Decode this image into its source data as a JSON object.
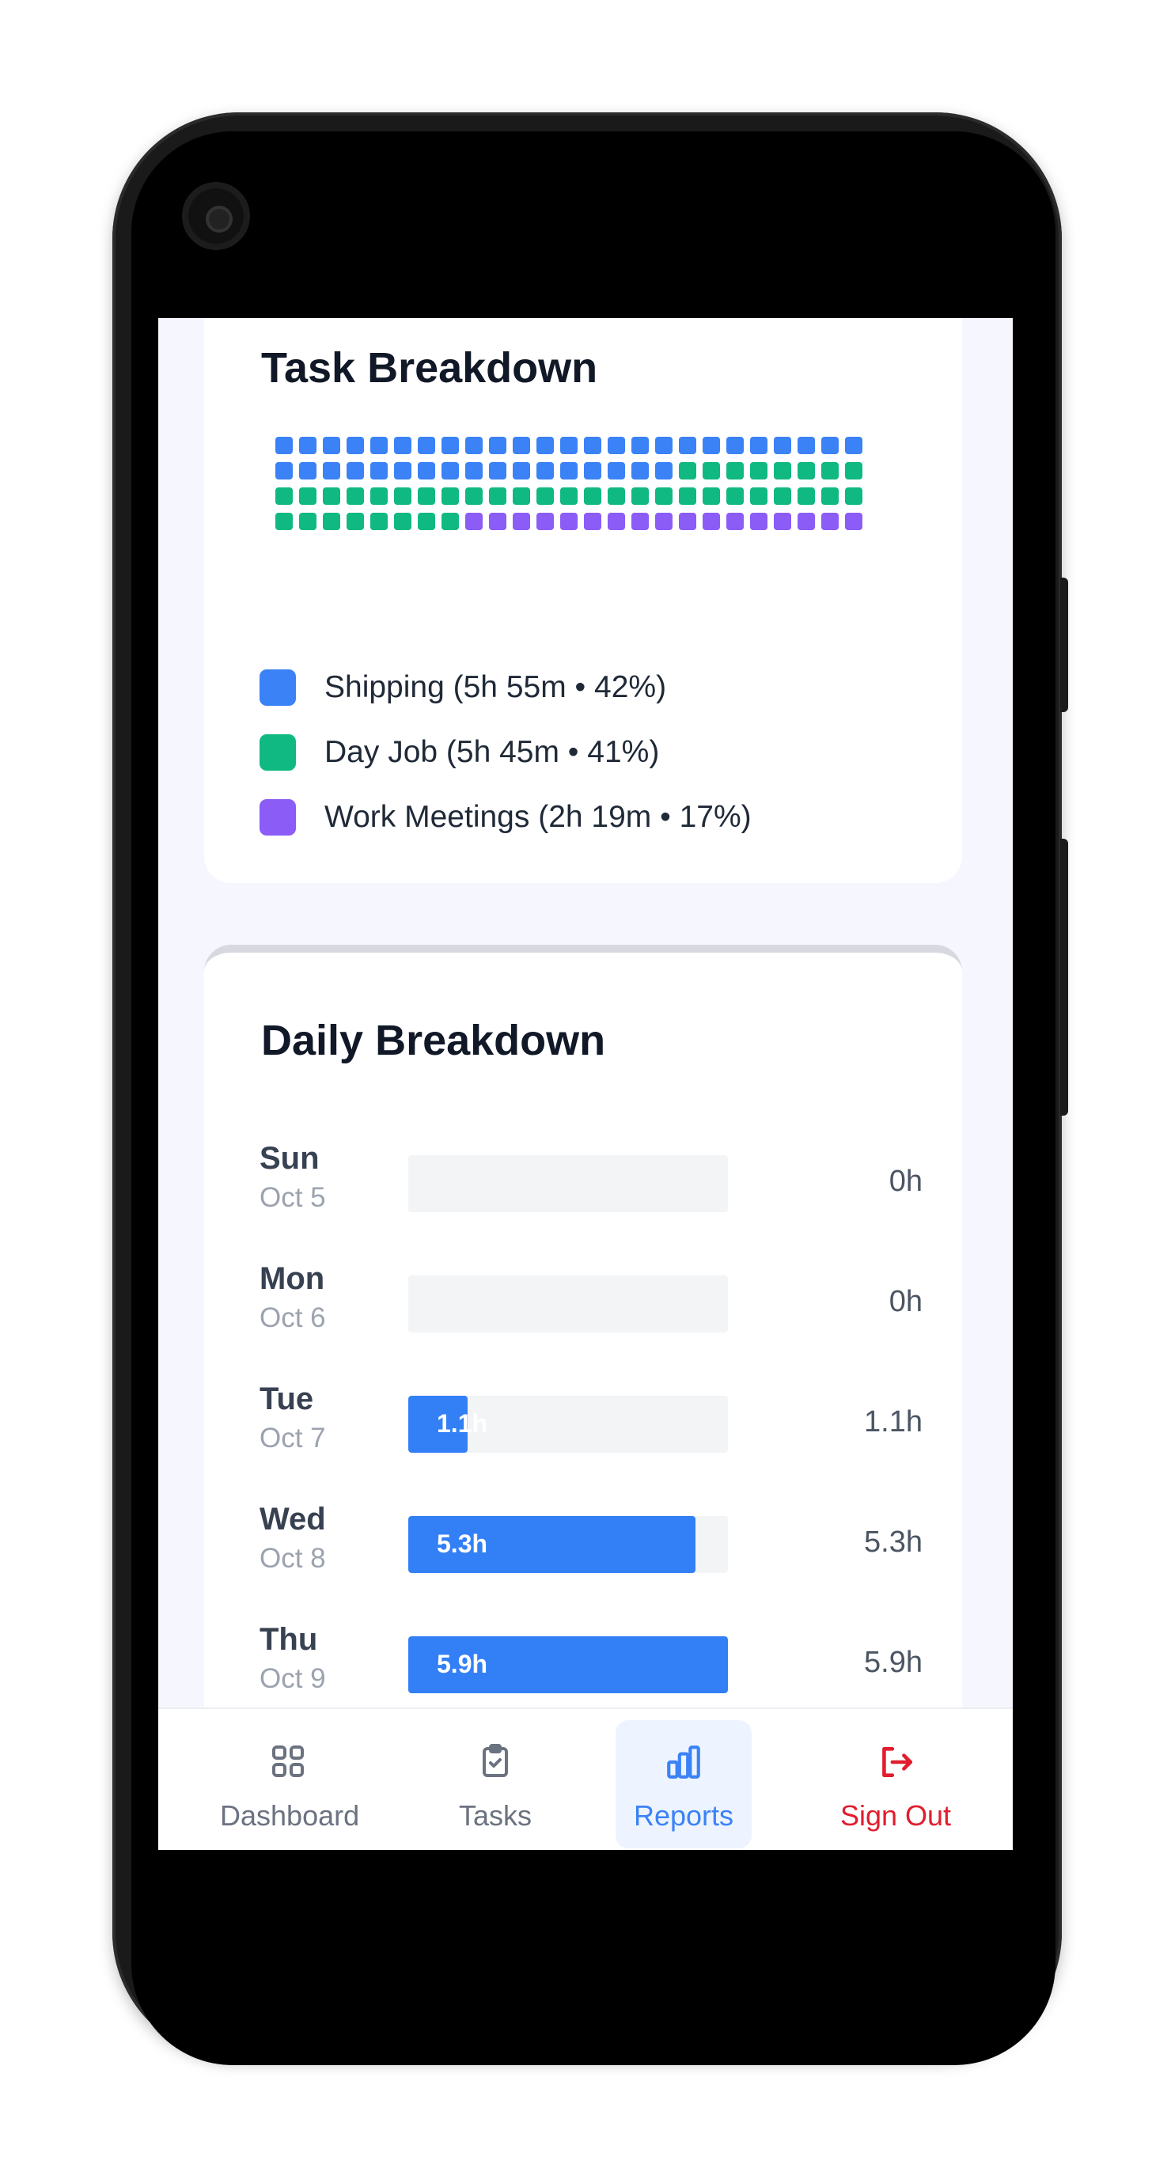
{
  "task_breakdown": {
    "title": "Task Breakdown",
    "waffle": {
      "columns": 25,
      "total_cells": 100,
      "segments": [
        {
          "name": "Shipping",
          "cells": 42,
          "color": "#3b82f6"
        },
        {
          "name": "Day Job",
          "cells": 41,
          "color": "#10b981"
        },
        {
          "name": "Work Meetings",
          "cells": 17,
          "color": "#8b5cf6"
        }
      ]
    },
    "legend": [
      {
        "label": "Shipping (5h 55m • 42%)",
        "color": "#3b82f6"
      },
      {
        "label": "Day Job (5h 45m • 41%)",
        "color": "#10b981"
      },
      {
        "label": "Work Meetings (2h 19m • 17%)",
        "color": "#8b5cf6"
      }
    ]
  },
  "daily_breakdown": {
    "title": "Daily Breakdown",
    "max_hours": 5.9,
    "days": [
      {
        "day": "Sun",
        "date": "Oct 5",
        "hours": 0,
        "bar_label": "",
        "value": "0h"
      },
      {
        "day": "Mon",
        "date": "Oct 6",
        "hours": 0,
        "bar_label": "",
        "value": "0h"
      },
      {
        "day": "Tue",
        "date": "Oct 7",
        "hours": 1.1,
        "bar_label": "1.1h",
        "value": "1.1h"
      },
      {
        "day": "Wed",
        "date": "Oct 8",
        "hours": 5.3,
        "bar_label": "5.3h",
        "value": "5.3h"
      },
      {
        "day": "Thu",
        "date": "Oct 9",
        "hours": 5.9,
        "bar_label": "5.9h",
        "value": "5.9h"
      }
    ]
  },
  "nav": {
    "dashboard": "Dashboard",
    "tasks": "Tasks",
    "reports": "Reports",
    "signout": "Sign Out",
    "active": "reports"
  },
  "colors": {
    "accent": "#3b82f6",
    "bar": "#3380f6",
    "danger": "#e11d2e"
  }
}
